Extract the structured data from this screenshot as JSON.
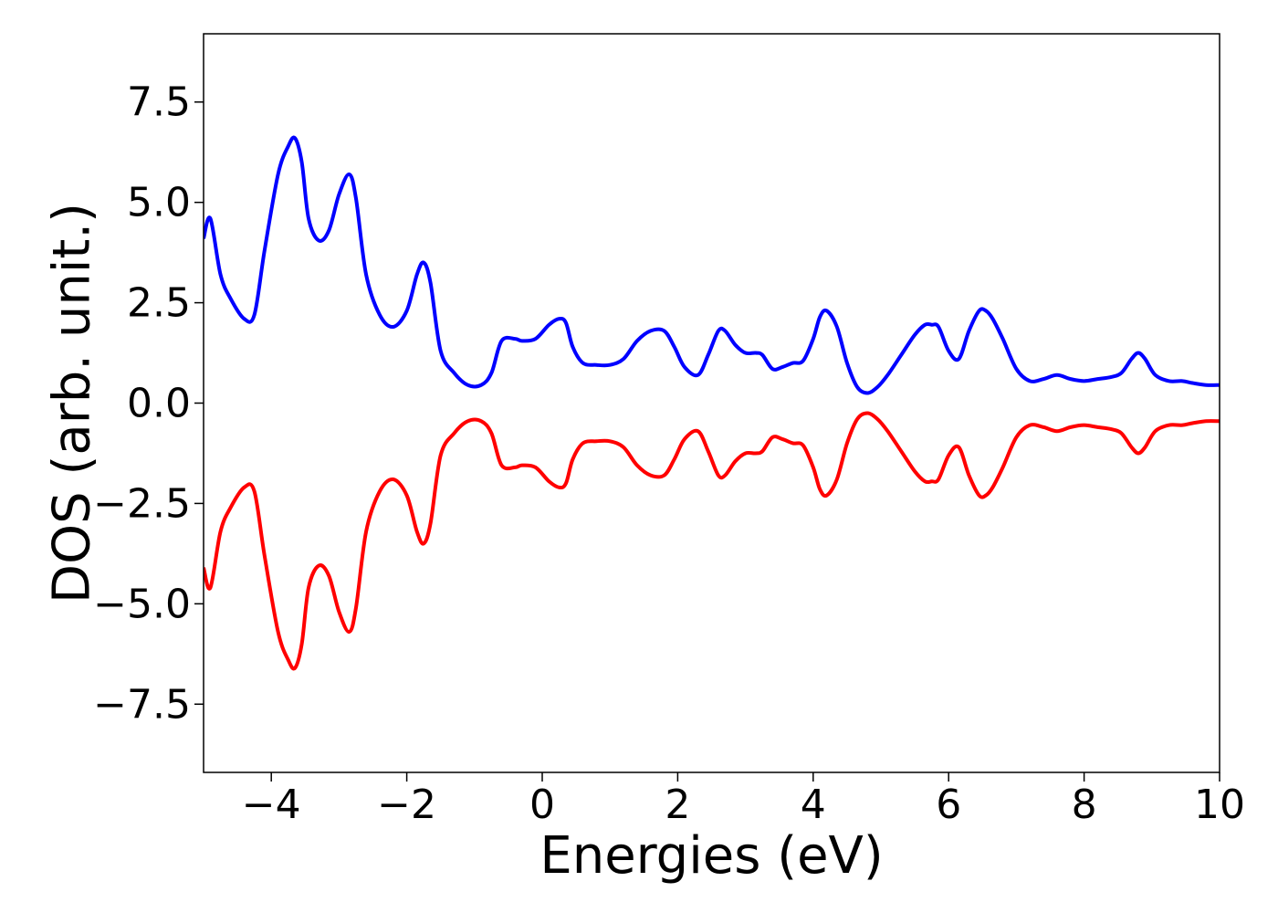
{
  "chart_data": {
    "type": "line",
    "xlabel": "Energies (eV)",
    "ylabel": "DOS (arb. unit.)",
    "xlim": [
      -5,
      10
    ],
    "ylim": [
      -9.2,
      9.2
    ],
    "xticks": [
      -4,
      -2,
      0,
      2,
      4,
      6,
      8,
      10
    ],
    "xtick_labels": [
      "−4",
      "−2",
      "0",
      "2",
      "4",
      "6",
      "8",
      "10"
    ],
    "yticks": [
      7.5,
      5.0,
      2.5,
      0.0,
      -2.5,
      -5.0,
      -7.5
    ],
    "ytick_labels": [
      "7.5",
      "5.0",
      "2.5",
      "0.0",
      "−2.5",
      "−5.0",
      "−7.5"
    ],
    "grid": false,
    "series": [
      {
        "color": "#0000ff",
        "x": [
          -5.0,
          -4.9,
          -4.75,
          -4.6,
          -4.4,
          -4.25,
          -4.1,
          -3.9,
          -3.75,
          -3.65,
          -3.55,
          -3.45,
          -3.3,
          -3.15,
          -3.0,
          -2.85,
          -2.75,
          -2.6,
          -2.4,
          -2.2,
          -2.0,
          -1.85,
          -1.75,
          -1.65,
          -1.5,
          -1.3,
          -1.1,
          -0.9,
          -0.75,
          -0.6,
          -0.4,
          -0.3,
          -0.1,
          0.1,
          0.25,
          0.35,
          0.45,
          0.6,
          0.8,
          1.0,
          1.2,
          1.4,
          1.6,
          1.8,
          1.95,
          2.1,
          2.3,
          2.45,
          2.6,
          2.7,
          2.85,
          3.0,
          3.15,
          3.25,
          3.4,
          3.55,
          3.7,
          3.85,
          4.0,
          4.1,
          4.2,
          4.35,
          4.5,
          4.65,
          4.8,
          4.95,
          5.1,
          5.3,
          5.5,
          5.65,
          5.75,
          5.85,
          6.0,
          6.15,
          6.3,
          6.45,
          6.55,
          6.65,
          6.8,
          7.0,
          7.2,
          7.4,
          7.6,
          7.8,
          8.0,
          8.2,
          8.4,
          8.55,
          8.7,
          8.8,
          8.9,
          9.05,
          9.25,
          9.45,
          9.6,
          9.8,
          10.0
        ],
        "values": [
          4.1,
          4.6,
          3.2,
          2.6,
          2.1,
          2.2,
          3.8,
          5.7,
          6.4,
          6.6,
          6.0,
          4.6,
          4.05,
          4.3,
          5.2,
          5.7,
          5.1,
          3.2,
          2.2,
          1.9,
          2.3,
          3.2,
          3.5,
          3.0,
          1.3,
          0.75,
          0.45,
          0.45,
          0.75,
          1.55,
          1.6,
          1.55,
          1.6,
          1.95,
          2.1,
          2.0,
          1.4,
          1.0,
          0.95,
          0.95,
          1.1,
          1.55,
          1.8,
          1.8,
          1.4,
          0.9,
          0.7,
          1.2,
          1.8,
          1.8,
          1.45,
          1.25,
          1.25,
          1.2,
          0.85,
          0.9,
          1.0,
          1.05,
          1.6,
          2.15,
          2.3,
          1.9,
          1.0,
          0.4,
          0.25,
          0.4,
          0.7,
          1.2,
          1.7,
          1.95,
          1.95,
          1.9,
          1.3,
          1.1,
          1.8,
          2.3,
          2.3,
          2.1,
          1.6,
          0.85,
          0.55,
          0.6,
          0.7,
          0.6,
          0.55,
          0.6,
          0.65,
          0.75,
          1.1,
          1.25,
          1.1,
          0.7,
          0.55,
          0.55,
          0.5,
          0.45,
          0.45
        ]
      },
      {
        "color": "#ff0000",
        "x": [
          -5.0,
          -4.9,
          -4.75,
          -4.6,
          -4.4,
          -4.25,
          -4.1,
          -3.9,
          -3.75,
          -3.65,
          -3.55,
          -3.45,
          -3.3,
          -3.15,
          -3.0,
          -2.85,
          -2.75,
          -2.6,
          -2.4,
          -2.2,
          -2.0,
          -1.85,
          -1.75,
          -1.65,
          -1.5,
          -1.3,
          -1.1,
          -0.9,
          -0.75,
          -0.6,
          -0.4,
          -0.3,
          -0.1,
          0.1,
          0.25,
          0.35,
          0.45,
          0.6,
          0.8,
          1.0,
          1.2,
          1.4,
          1.6,
          1.8,
          1.95,
          2.1,
          2.3,
          2.45,
          2.6,
          2.7,
          2.85,
          3.0,
          3.15,
          3.25,
          3.4,
          3.55,
          3.7,
          3.85,
          4.0,
          4.1,
          4.2,
          4.35,
          4.5,
          4.65,
          4.8,
          4.95,
          5.1,
          5.3,
          5.5,
          5.65,
          5.75,
          5.85,
          6.0,
          6.15,
          6.3,
          6.45,
          6.55,
          6.65,
          6.8,
          7.0,
          7.2,
          7.4,
          7.6,
          7.8,
          8.0,
          8.2,
          8.4,
          8.55,
          8.7,
          8.8,
          8.9,
          9.05,
          9.25,
          9.45,
          9.6,
          9.8,
          10.0
        ],
        "values": [
          -4.1,
          -4.6,
          -3.2,
          -2.6,
          -2.1,
          -2.2,
          -3.8,
          -5.7,
          -6.4,
          -6.6,
          -6.0,
          -4.6,
          -4.05,
          -4.3,
          -5.2,
          -5.7,
          -5.1,
          -3.2,
          -2.2,
          -1.9,
          -2.3,
          -3.2,
          -3.5,
          -3.0,
          -1.3,
          -0.75,
          -0.45,
          -0.45,
          -0.75,
          -1.55,
          -1.6,
          -1.55,
          -1.6,
          -1.95,
          -2.1,
          -2.0,
          -1.4,
          -1.0,
          -0.95,
          -0.95,
          -1.1,
          -1.55,
          -1.8,
          -1.8,
          -1.4,
          -0.9,
          -0.7,
          -1.2,
          -1.8,
          -1.8,
          -1.45,
          -1.25,
          -1.25,
          -1.2,
          -0.85,
          -0.9,
          -1.0,
          -1.05,
          -1.6,
          -2.15,
          -2.3,
          -1.9,
          -1.0,
          -0.4,
          -0.25,
          -0.4,
          -0.7,
          -1.2,
          -1.7,
          -1.95,
          -1.95,
          -1.9,
          -1.3,
          -1.1,
          -1.8,
          -2.3,
          -2.3,
          -2.1,
          -1.6,
          -0.85,
          -0.55,
          -0.6,
          -0.7,
          -0.6,
          -0.55,
          -0.6,
          -0.65,
          -0.75,
          -1.1,
          -1.25,
          -1.1,
          -0.7,
          -0.55,
          -0.55,
          -0.5,
          -0.45,
          -0.45
        ]
      }
    ]
  }
}
